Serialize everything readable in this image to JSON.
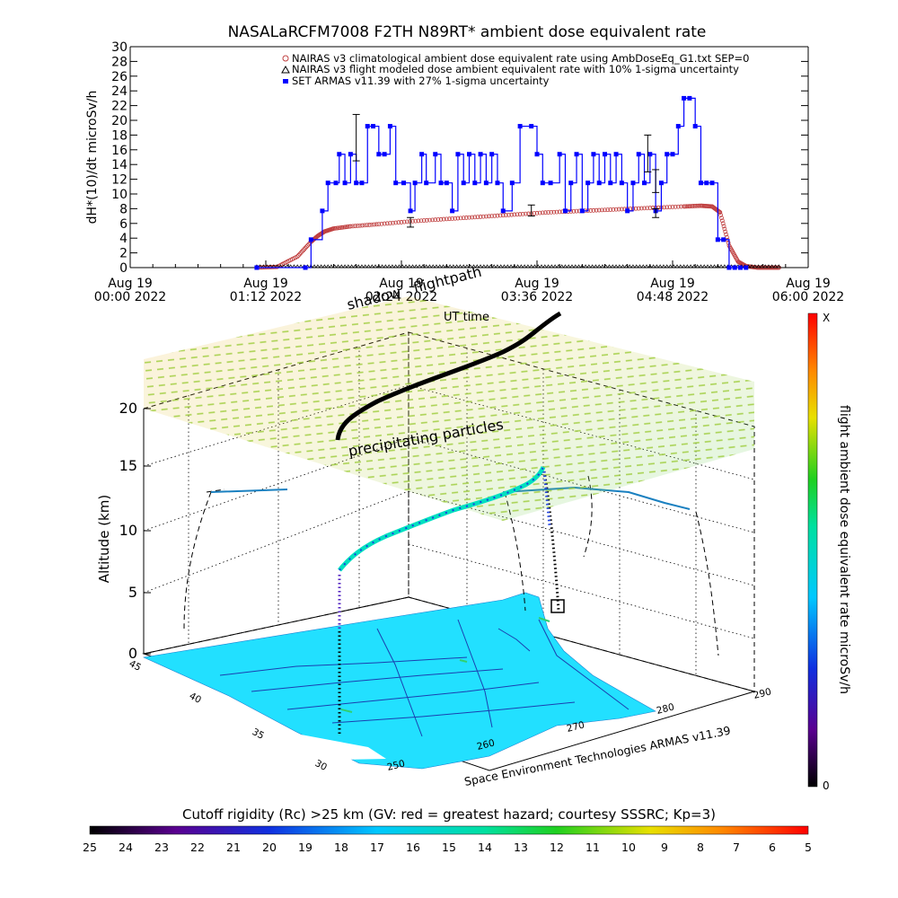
{
  "top_chart": {
    "title": "NASALaRCFM7008  F2TH N89RT* ambient dose equivalent rate",
    "ylabel": "dH*(10)/dt microSv/h",
    "y_ticks": [
      "0",
      "2",
      "4",
      "6",
      "8",
      "10",
      "12",
      "14",
      "16",
      "18",
      "20",
      "22",
      "24",
      "26",
      "28",
      "30"
    ],
    "x_ticks": [
      {
        "line1": "Aug 19",
        "line2": "00:00 2022"
      },
      {
        "line1": "Aug 19",
        "line2": "01:12 2022"
      },
      {
        "line1": "Aug 19",
        "line2": "02:24 2022"
      },
      {
        "line1": "Aug 19",
        "line2": "03:36 2022"
      },
      {
        "line1": "Aug 19",
        "line2": "04:48 2022"
      },
      {
        "line1": "Aug 19",
        "line2": "06:00 2022"
      }
    ],
    "legend": [
      "NAIRAS v3 climatological ambient dose equivalent rate using AmbDoseEq_G1.txt SEP=0",
      "NAIRAS v3 flight modeled dose ambient equivalent rate with 10% 1-sigma uncertainty",
      "SET ARMAS v11.39 with 27% 1-sigma uncertainty"
    ]
  },
  "scene3d": {
    "shadow_label": "shadow",
    "flightpath_label": "flightpath",
    "ut_time_label": "UT time",
    "precip_label": "precipitating particles",
    "z_axis_label": "Altitude (km)",
    "z_ticks": [
      "0",
      "5",
      "10",
      "15",
      "20"
    ],
    "lat_ticks": [
      "45",
      "40",
      "35",
      "30"
    ],
    "lon_ticks": [
      "250",
      "260",
      "270",
      "280",
      "290"
    ],
    "credit": "Space Environment Technologies ARMAS v11.39"
  },
  "right_colorbar": {
    "label": "flight ambient dose equivalent rate microSv/h",
    "top_label": "X",
    "bottom_label": "0"
  },
  "bottom_colorbar": {
    "title": "Cutoff rigidity (Rc) >25 km (GV: red = greatest hazard; courtesy SSSRC; Kp=3)",
    "ticks": [
      "25",
      "24",
      "23",
      "22",
      "21",
      "20",
      "19",
      "18",
      "17",
      "16",
      "15",
      "14",
      "13",
      "12",
      "11",
      "10",
      "9",
      "8",
      "7",
      "6",
      "5"
    ]
  },
  "chart_data": {
    "type": "line",
    "title": "NASALaRCFM7008  F2TH N89RT* ambient dose equivalent rate",
    "xlabel": "",
    "ylabel": "dH*(10)/dt microSv/h",
    "x_unit": "hours after Aug 19 2022 00:00 UT",
    "xlim": [
      0,
      6
    ],
    "ylim": [
      0,
      30
    ],
    "grid": false,
    "legend_position": "top-right",
    "colors": {
      "nairas_climatological": "#c04040",
      "nairas_flight_model": "#000000",
      "armas": "#0000ff"
    },
    "series": [
      {
        "name": "NAIRAS v3 climatological ambient dose equivalent rate using AmbDoseEq_G1.txt SEP=0",
        "marker": "o",
        "x": [
          1.12,
          1.3,
          1.48,
          1.6,
          1.66,
          1.72,
          1.8,
          1.95,
          2.2,
          2.5,
          2.8,
          3.1,
          3.4,
          3.7,
          4.0,
          4.3,
          4.6,
          4.9,
          5.05,
          5.15,
          5.22,
          5.3,
          5.38,
          5.45,
          5.55,
          5.65,
          5.75
        ],
        "y": [
          0,
          0.1,
          1.5,
          3.5,
          4.3,
          4.9,
          5.3,
          5.6,
          5.9,
          6.3,
          6.6,
          6.9,
          7.2,
          7.5,
          7.7,
          7.9,
          8.1,
          8.3,
          8.4,
          8.3,
          7.5,
          3.0,
          0.8,
          0.2,
          0,
          0,
          0
        ]
      },
      {
        "name": "NAIRAS v3 flight modeled dose ambient equivalent rate with 10% 1-sigma uncertainty",
        "marker": "triangle",
        "x": [
          1.12,
          1.5,
          2.0,
          2.5,
          3.0,
          3.5,
          4.0,
          4.5,
          5.0,
          5.5,
          5.75
        ],
        "y": [
          0,
          0,
          0,
          0,
          0,
          0,
          0,
          0,
          0,
          0,
          0
        ]
      },
      {
        "name": "SET ARMAS v11.39 with 27% 1-sigma uncertainty",
        "marker": "square",
        "x": [
          1.12,
          1.55,
          1.6,
          1.7,
          1.75,
          1.82,
          1.85,
          1.9,
          1.95,
          2.0,
          2.05,
          2.1,
          2.15,
          2.2,
          2.25,
          2.3,
          2.35,
          2.42,
          2.48,
          2.52,
          2.58,
          2.62,
          2.7,
          2.75,
          2.8,
          2.85,
          2.9,
          2.95,
          3.0,
          3.05,
          3.1,
          3.15,
          3.2,
          3.25,
          3.3,
          3.38,
          3.45,
          3.55,
          3.6,
          3.65,
          3.72,
          3.8,
          3.85,
          3.9,
          3.95,
          4.0,
          4.05,
          4.1,
          4.15,
          4.2,
          4.25,
          4.3,
          4.35,
          4.4,
          4.45,
          4.5,
          4.55,
          4.6,
          4.65,
          4.7,
          4.75,
          4.8,
          4.85,
          4.9,
          4.95,
          5.0,
          5.05,
          5.1,
          5.15,
          5.2,
          5.25,
          5.3,
          5.35,
          5.4,
          5.45
        ],
        "y": [
          0,
          0,
          3.8,
          7.7,
          11.5,
          11.5,
          15.4,
          11.5,
          15.4,
          11.5,
          11.5,
          19.2,
          19.2,
          15.4,
          15.4,
          19.2,
          11.5,
          11.5,
          7.7,
          11.5,
          15.4,
          11.5,
          15.4,
          11.5,
          11.5,
          7.7,
          15.4,
          11.5,
          15.4,
          11.5,
          15.4,
          11.5,
          15.4,
          11.5,
          7.7,
          11.5,
          19.2,
          19.2,
          15.4,
          11.5,
          11.5,
          15.4,
          7.7,
          11.5,
          15.4,
          7.7,
          11.5,
          15.4,
          11.5,
          15.4,
          11.5,
          15.4,
          11.5,
          7.7,
          11.5,
          15.4,
          11.5,
          15.4,
          7.7,
          11.5,
          15.4,
          15.4,
          19.2,
          23.0,
          23.0,
          19.2,
          11.5,
          11.5,
          11.5,
          3.8,
          3.8,
          0,
          0,
          0,
          0
        ]
      }
    ]
  }
}
